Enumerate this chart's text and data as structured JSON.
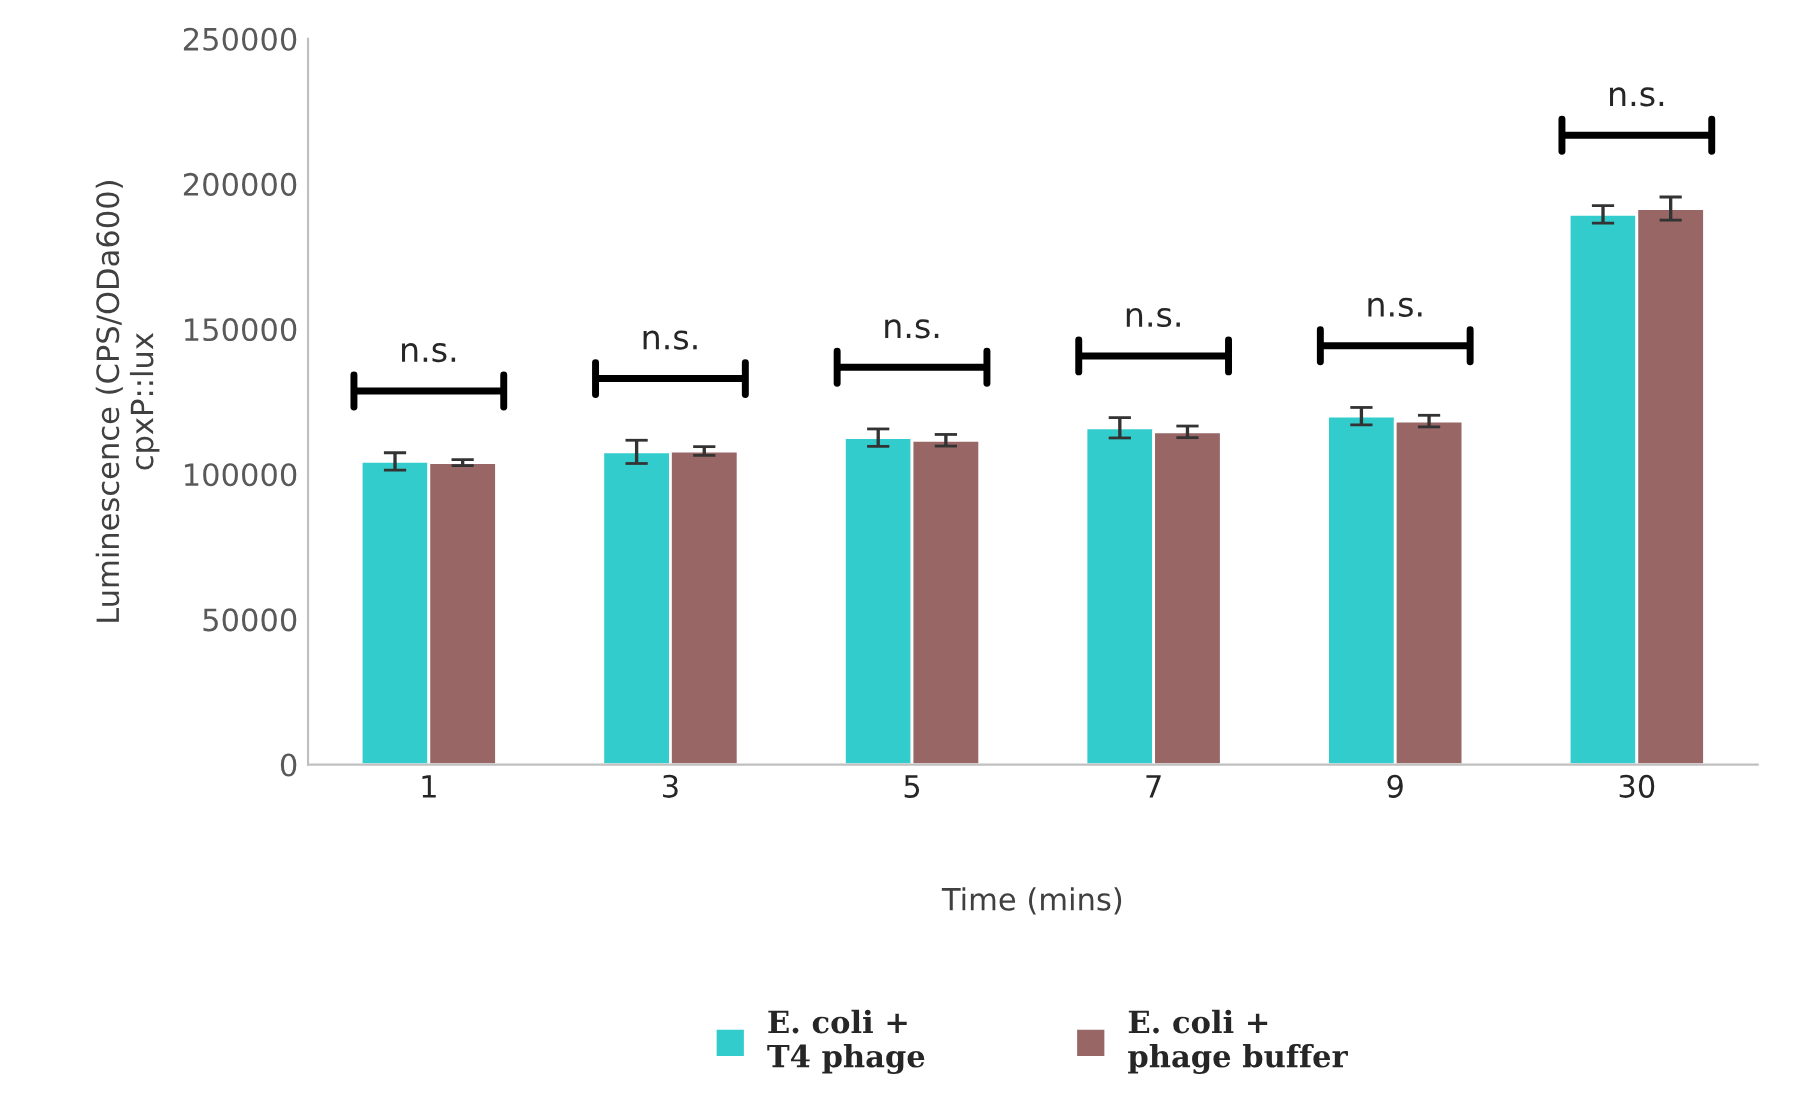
{
  "chart_data": {
    "type": "bar",
    "categories": [
      "1",
      "3",
      "5",
      "7",
      "9",
      "30"
    ],
    "series": [
      {
        "name": "E. coli +\nT4 phage",
        "color": "#33cccc",
        "values": [
          104400,
          107700,
          112600,
          116000,
          120000,
          189500
        ],
        "errors": [
          3000,
          4000,
          3000,
          3500,
          3000,
          3000
        ]
      },
      {
        "name": "E. coli +\nphage buffer",
        "color": "#996666",
        "values": [
          104000,
          108000,
          111700,
          114600,
          118300,
          191500
        ],
        "errors": [
          1000,
          1500,
          2000,
          2000,
          2000,
          4000
        ]
      }
    ],
    "xlabel": "Time (mins)",
    "ylabel": "Luminescence (CPS/ODa600)\ncpxP::lux",
    "ylim": [
      0,
      250000
    ],
    "yticks": [
      0,
      50000,
      100000,
      150000,
      200000,
      250000
    ],
    "annotations": [
      "n.s.",
      "n.s.",
      "n.s.",
      "n.s.",
      "n.s.",
      "n.s."
    ],
    "grid": false,
    "legend": "bottom"
  }
}
